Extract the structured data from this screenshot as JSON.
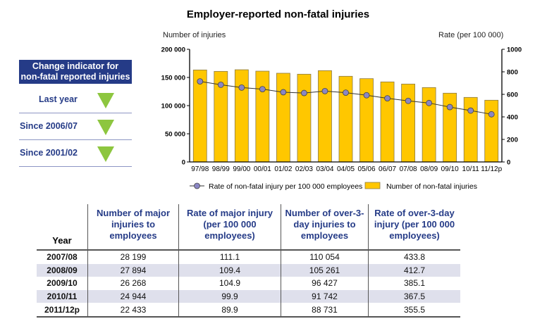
{
  "chart_data": {
    "type": "bar+line",
    "title": "Employer-reported non-fatal injuries",
    "ylabel_left": "Number of injuries",
    "ylabel_right": "Rate (per 100 000)",
    "categories": [
      "97/98",
      "98/99",
      "99/00",
      "00/01",
      "01/02",
      "02/03",
      "03/04",
      "04/05",
      "05/06",
      "06/07",
      "07/08",
      "08/09",
      "09/10",
      "10/11",
      "11/12p"
    ],
    "ylim_left": [
      0,
      200000
    ],
    "yticks_left": [
      "0",
      "50 000",
      "100 000",
      "150 000",
      "200 000"
    ],
    "ylim_right": [
      0,
      1000
    ],
    "yticks_right": [
      "0",
      "200",
      "400",
      "600",
      "800",
      "1000"
    ],
    "series": [
      {
        "name": "Number of non-fatal injuries",
        "type": "bar",
        "axis": "left",
        "color": "#ffc700",
        "values": [
          163300,
          160800,
          163700,
          161200,
          157500,
          155800,
          162100,
          152100,
          147900,
          142100,
          138300,
          132100,
          122100,
          114600,
          109600
        ]
      },
      {
        "name": "Rate of non-fatal injury per 100 000 employees",
        "type": "line",
        "axis": "right",
        "color": "#8a86c4",
        "values": [
          715,
          685,
          660,
          646,
          619,
          612,
          629,
          615,
          592,
          565,
          542,
          523,
          487,
          456,
          423
        ]
      }
    ],
    "grid": false,
    "legend": "bottom"
  },
  "indicator": {
    "title_line1": "Change indicator for",
    "title_line2": "non-fatal reported injuries",
    "rows": [
      {
        "label": "Last year",
        "direction": "down",
        "color": "#8dc63f"
      },
      {
        "label": "Since 2006/07",
        "direction": "down",
        "color": "#8dc63f"
      },
      {
        "label": "Since 2001/02",
        "direction": "down",
        "color": "#8dc63f"
      }
    ]
  },
  "table": {
    "headers": [
      "Year",
      "Number of major injuries to employees",
      "Rate of major injury (per 100 000 employees)",
      "Number of over-3-day injuries to employees",
      "Rate of over-3-day injury (per 100 000 employees)"
    ],
    "rows": [
      [
        "2007/08",
        "28 199",
        "111.1",
        "110 054",
        "433.8"
      ],
      [
        "2008/09",
        "27 894",
        "109.4",
        "105 261",
        "412.7"
      ],
      [
        "2009/10",
        "26 268",
        "104.9",
        "96 427",
        "385.1"
      ],
      [
        "2010/11",
        "24 944",
        "99.9",
        "91 742",
        "367.5"
      ],
      [
        "2011/12p",
        "22 433",
        "89.9",
        "88 731",
        "355.5"
      ]
    ]
  }
}
